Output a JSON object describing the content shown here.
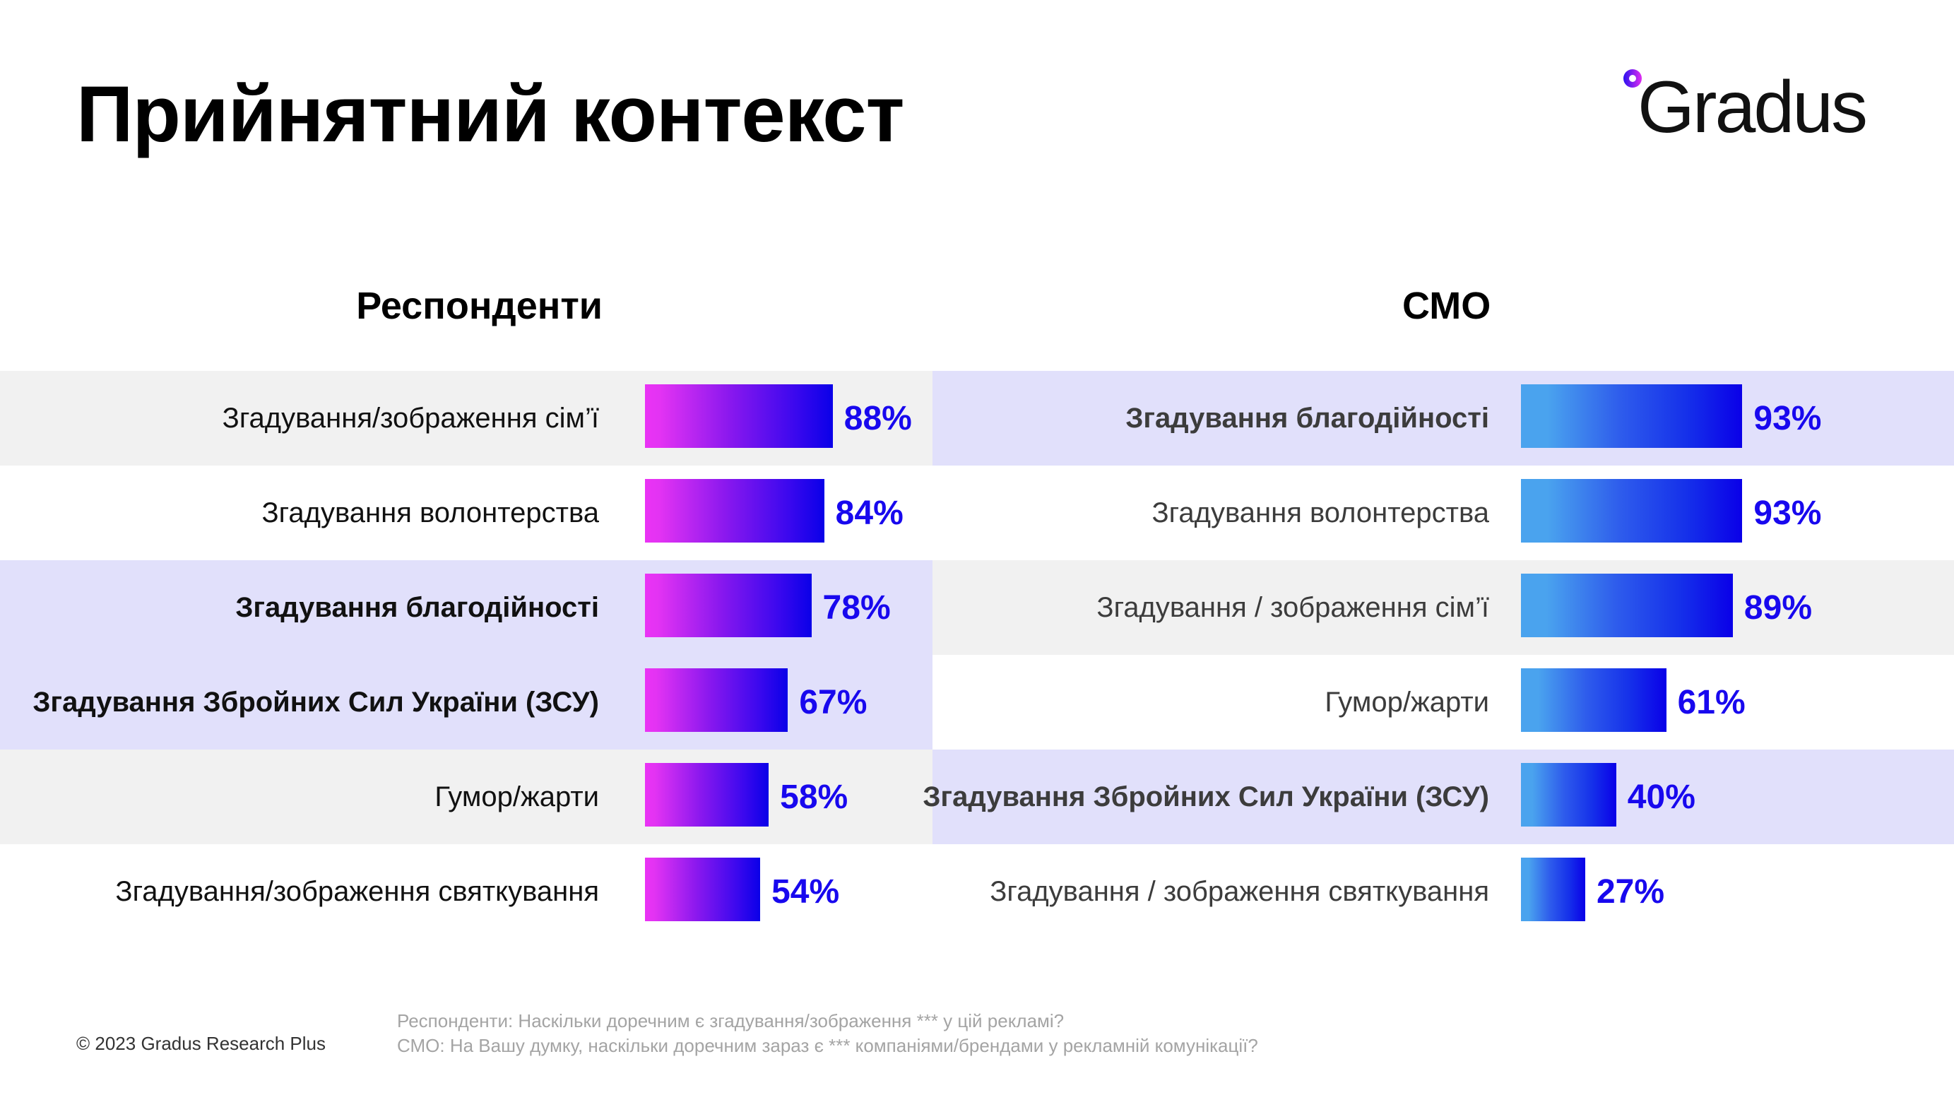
{
  "title": "Прийнятний контекст",
  "logo": {
    "text": "Gradus",
    "ring_colors": [
      "#2a10f0",
      "#e02ef0"
    ]
  },
  "colors": {
    "value_text": "#1808ee",
    "row_gray": "#f1f1f1",
    "row_highlight": "#e1e0fb",
    "left_bar_gradient": [
      "#ea33f5",
      "#0a00e8"
    ],
    "right_bar_gradient": [
      "#4aa3ee",
      "#0a00e8"
    ]
  },
  "chart_data": [
    {
      "type": "bar",
      "orientation": "horizontal",
      "title": "Респонденти",
      "xlabel": "",
      "ylabel": "",
      "xlim": [
        0,
        100
      ],
      "unit": "%",
      "categories": [
        "Згадування/зображення сім’ї",
        "Згадування волонтерства",
        "Згадування благодійності",
        "Згадування Збройних Сил України (ЗСУ)",
        "Гумор/жарти",
        "Згадування/зображення святкування"
      ],
      "values": [
        88,
        84,
        78,
        67,
        58,
        54
      ],
      "labels": [
        "88%",
        "84%",
        "78%",
        "67%",
        "58%",
        "54%"
      ],
      "bold": [
        false,
        false,
        true,
        true,
        false,
        false
      ],
      "row_backgrounds": [
        "gray",
        "white",
        "lav",
        "lav",
        "gray",
        "white"
      ],
      "grid": false,
      "legend": "none"
    },
    {
      "type": "bar",
      "orientation": "horizontal",
      "title": "СМО",
      "xlabel": "",
      "ylabel": "",
      "xlim": [
        0,
        100
      ],
      "unit": "%",
      "categories": [
        "Згадування благодійності",
        "Згадування волонтерства",
        "Згадування / зображення сім’ї",
        "Гумор/жарти",
        "Згадування Збройних Сил України (ЗСУ)",
        "Згадування / зображення святкування"
      ],
      "values": [
        93,
        93,
        89,
        61,
        40,
        27
      ],
      "labels": [
        "93%",
        "93%",
        "89%",
        "61%",
        "40%",
        "27%"
      ],
      "bold": [
        true,
        false,
        false,
        false,
        true,
        false
      ],
      "row_backgrounds": [
        "lav",
        "white",
        "gray",
        "white",
        "lav",
        "white"
      ],
      "grid": false,
      "legend": "none"
    }
  ],
  "footer": {
    "copyright": "© 2023 Gradus Research Plus",
    "notes": [
      "Респонденти: Наскільки доречним є згадування/зображення *** у цій рекламі?",
      "СМО: На Вашу думку, наскільки доречним зараз є ***  компаніями/брендами у рекламній комунікації?"
    ]
  }
}
